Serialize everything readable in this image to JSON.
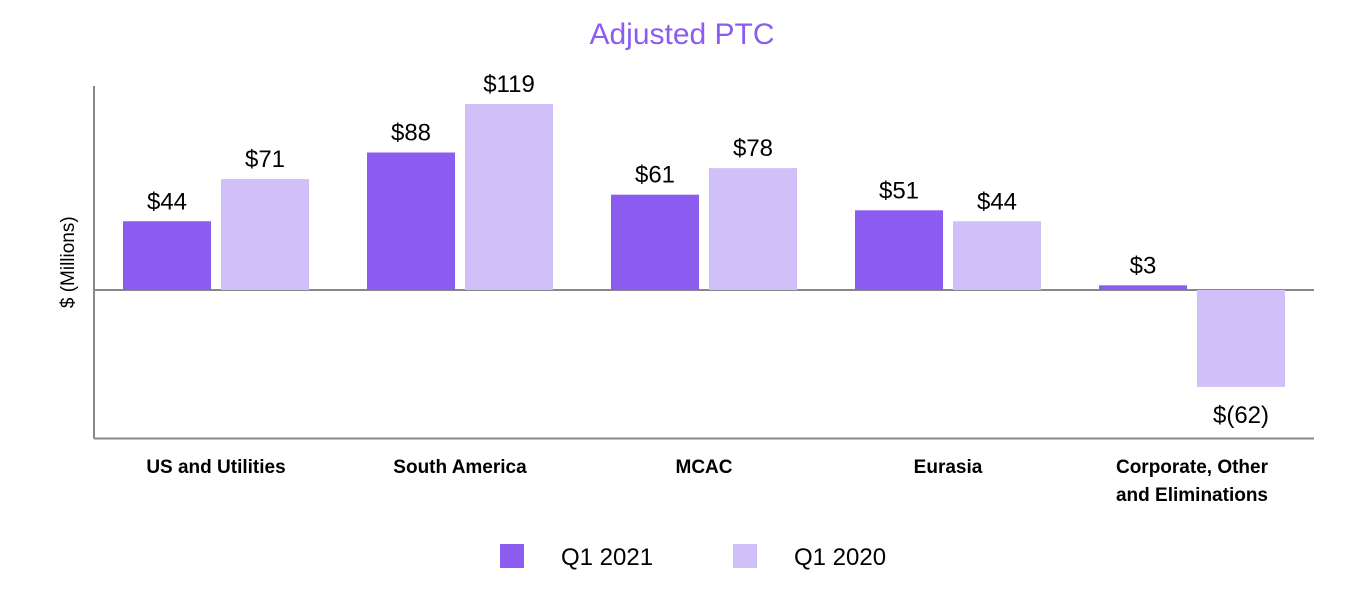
{
  "chart_data": {
    "type": "bar",
    "title": "Adjusted PTC",
    "ylabel": "$ (Millions)",
    "xlabel": "",
    "categories": [
      [
        "US and Utilities"
      ],
      [
        "South America"
      ],
      [
        "MCAC"
      ],
      [
        "Eurasia"
      ],
      [
        "Corporate, Other",
        "and Eliminations"
      ]
    ],
    "series": [
      {
        "name": "Q1 2021",
        "color": "#8c5cf0",
        "values": [
          44,
          88,
          61,
          51,
          3
        ],
        "labels": [
          "$44",
          "$88",
          "$61",
          "$51",
          "$3"
        ]
      },
      {
        "name": "Q1 2020",
        "color": "#d0bff8",
        "values": [
          71,
          119,
          78,
          44,
          -62
        ],
        "labels": [
          "$71",
          "$119",
          "$78",
          "$44",
          "$(62)"
        ]
      }
    ],
    "ylim": [
      -95,
      130
    ],
    "grid": false,
    "legend": "bottom-center",
    "title_color": "#8c5cf0"
  }
}
